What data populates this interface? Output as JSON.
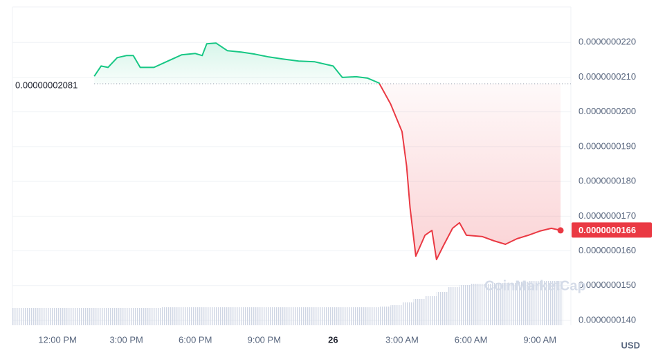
{
  "chart_data": {
    "type": "line",
    "x": [
      1.6,
      1.9,
      2.2,
      2.6,
      3.0,
      3.3,
      3.6,
      4.2,
      4.8,
      5.4,
      6.0,
      6.3,
      6.5,
      6.9,
      7.4,
      8.0,
      8.6,
      9.2,
      9.8,
      10.5,
      11.2,
      12.0,
      12.4,
      13.0,
      13.5,
      14.0,
      14.5,
      15.0,
      15.2,
      15.35,
      15.6,
      16.0,
      16.3,
      16.5,
      16.8,
      17.2,
      17.5,
      17.8,
      18.5,
      19.0,
      19.5,
      20.0,
      20.5,
      21.0,
      21.5,
      21.9
    ],
    "series": [
      {
        "values": [
          2.1025e-08,
          2.132e-08,
          2.128e-08,
          2.156e-08,
          2.162e-08,
          2.162e-08,
          2.128e-08,
          2.128e-08,
          2.146e-08,
          2.164e-08,
          2.168e-08,
          2.162e-08,
          2.196e-08,
          2.198e-08,
          2.176e-08,
          2.172e-08,
          2.166e-08,
          2.158e-08,
          2.152e-08,
          2.146e-08,
          2.144e-08,
          2.132e-08,
          2.099e-08,
          2.101e-08,
          2.097e-08,
          2.083e-08,
          2.023e-08,
          1.943e-08,
          1.844e-08,
          1.724e-08,
          1.585e-08,
          1.645e-08,
          1.659e-08,
          1.575e-08,
          1.615e-08,
          1.665e-08,
          1.681e-08,
          1.645e-08,
          1.641e-08,
          1.629e-08,
          1.619e-08,
          1.635e-08,
          1.645e-08,
          1.657e-08,
          1.665e-08,
          1.659e-08
        ],
        "color_up": "#16c784",
        "color_down": "#ea3943"
      }
    ],
    "volume": {
      "x": [
        -1.75,
        -1.25,
        -0.75,
        -0.25,
        0.25,
        0.75,
        1.25,
        1.75,
        2.25,
        2.75,
        3.25,
        3.75,
        4.25,
        4.75,
        5.25,
        5.75,
        6.25,
        6.75,
        7.25,
        7.75,
        8.25,
        8.75,
        9.25,
        9.75,
        10.25,
        10.75,
        11.25,
        11.75,
        12.25,
        12.75,
        13.25,
        13.75,
        14.25,
        14.75,
        15.25,
        15.75,
        16.25,
        16.75,
        17.25,
        17.75,
        18.25,
        18.75,
        19.25,
        19.75,
        20.25,
        20.75,
        21.25,
        21.75
      ],
      "values": [
        25,
        25,
        25,
        25,
        25,
        25,
        25,
        25,
        25,
        25,
        25,
        25,
        25,
        26,
        26,
        26,
        26,
        26,
        26,
        26,
        26,
        26,
        26,
        26,
        26,
        26,
        26,
        26,
        26,
        26,
        26,
        26,
        27,
        29,
        33,
        38,
        42,
        48,
        55,
        58,
        60,
        60,
        61,
        61,
        63,
        64,
        64,
        64
      ],
      "color": "#cfd6e4"
    },
    "xlim": [
      -1.96,
      22.35
    ],
    "xticks": [
      {
        "value": 0,
        "label": "12:00 PM"
      },
      {
        "value": 3,
        "label": "3:00 PM"
      },
      {
        "value": 6,
        "label": "6:00 PM"
      },
      {
        "value": 9,
        "label": "9:00 PM"
      },
      {
        "value": 12,
        "label": "26"
      },
      {
        "value": 15,
        "label": "3:00 AM"
      },
      {
        "value": 18,
        "label": "6:00 AM"
      },
      {
        "value": 21,
        "label": "9:00 AM"
      }
    ],
    "ylim": [
      1.386e-08,
      2.302e-08
    ],
    "yticks": [
      {
        "value": 1.4e-08,
        "label": "0.0000000140"
      },
      {
        "value": 1.5e-08,
        "label": "0.0000000150"
      },
      {
        "value": 1.6e-08,
        "label": "0.0000000160"
      },
      {
        "value": 1.7e-08,
        "label": "0.0000000170"
      },
      {
        "value": 1.8e-08,
        "label": "0.0000000180"
      },
      {
        "value": 1.9e-08,
        "label": "0.0000000190"
      },
      {
        "value": 2e-08,
        "label": "0.0000000200"
      },
      {
        "value": 2.1e-08,
        "label": "0.0000000210"
      },
      {
        "value": 2.2e-08,
        "label": "0.0000000220"
      }
    ],
    "baseline": {
      "value": 2.081e-08,
      "label": "0.00000002081"
    },
    "current_price": {
      "value": 1.66e-08,
      "label": "0.0000000166"
    },
    "currency": "USD",
    "watermark": "CoinMarketCap",
    "grid": true
  }
}
